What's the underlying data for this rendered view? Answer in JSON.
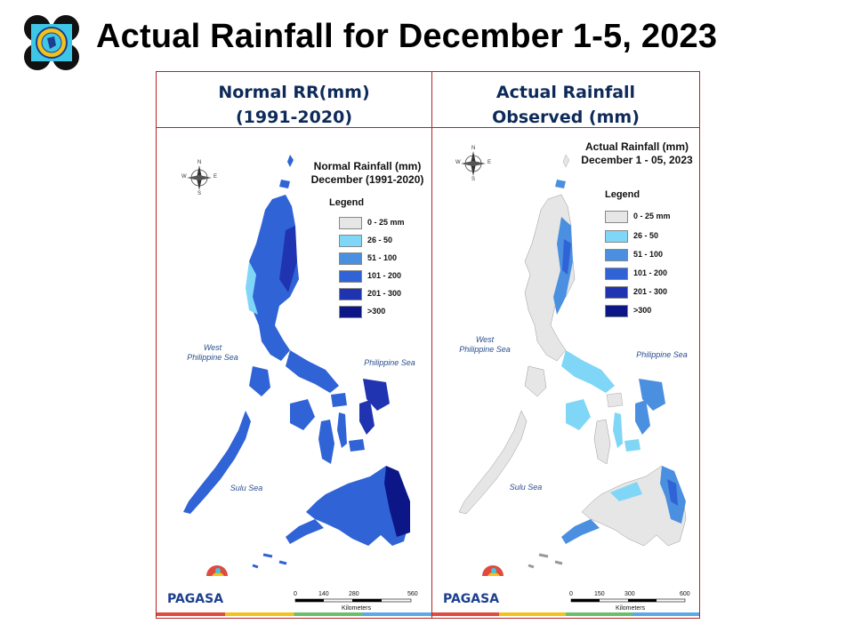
{
  "header": {
    "title": "Actual Rainfall for December 1-5, 2023",
    "logo_icon": "pagasa-seal-icon"
  },
  "panels": [
    {
      "heading_line1": "Normal RR(mm)",
      "heading_line2": "(1991-2020)",
      "map_title_line1": "Normal Rainfall (mm)",
      "map_title_line2": "December (1991-2020)",
      "legend_title": "Legend",
      "legend": [
        {
          "label": "0 - 25 mm",
          "color": "#e6e6e6"
        },
        {
          "label": "26 - 50",
          "color": "#7fd6f7"
        },
        {
          "label": "51 - 100",
          "color": "#4a8fe0"
        },
        {
          "label": "101 - 200",
          "color": "#2f63d6"
        },
        {
          "label": "201 - 300",
          "color": "#2034b2"
        },
        {
          "label": ">300",
          "color": "#0c1686"
        }
      ],
      "sea_labels": {
        "west_line1": "West",
        "west_line2": "Philippine Sea",
        "east": "Philippine Sea",
        "sulu": "Sulu Sea"
      },
      "scale": {
        "ticks": [
          "0",
          "140",
          "280",
          "560"
        ],
        "unit": "Kilometers"
      },
      "compass": {
        "n": "N",
        "s": "S",
        "e": "E",
        "w": "W"
      },
      "brand": "PAGASA"
    },
    {
      "heading_line1": "Actual Rainfall",
      "heading_line2": "Observed  (mm)",
      "map_title_line1": "Actual Rainfall (mm)",
      "map_title_line2": "December 1 - 05, 2023",
      "legend_title": "Legend",
      "legend": [
        {
          "label": "0 - 25 mm",
          "color": "#e6e6e6"
        },
        {
          "label": "26 - 50",
          "color": "#7fd6f7"
        },
        {
          "label": "51 - 100",
          "color": "#4a8fe0"
        },
        {
          "label": "101 - 200",
          "color": "#2f63d6"
        },
        {
          "label": "201 - 300",
          "color": "#2034b2"
        },
        {
          "label": ">300",
          "color": "#0c1686"
        }
      ],
      "sea_labels": {
        "west_line1": "West",
        "west_line2": "Philippine Sea",
        "east": "Philippine Sea",
        "sulu": "Sulu Sea"
      },
      "scale": {
        "ticks": [
          "0",
          "150",
          "300",
          "600"
        ],
        "unit": "Kilometers"
      },
      "compass": {
        "n": "N",
        "s": "S",
        "e": "E",
        "w": "W"
      },
      "brand": "PAGASA"
    }
  ],
  "colors": {
    "frame": "#b32424",
    "heading": "#0e2a5a",
    "land_normal": "#2f63d6",
    "land_dry": "#e6e6e6"
  }
}
